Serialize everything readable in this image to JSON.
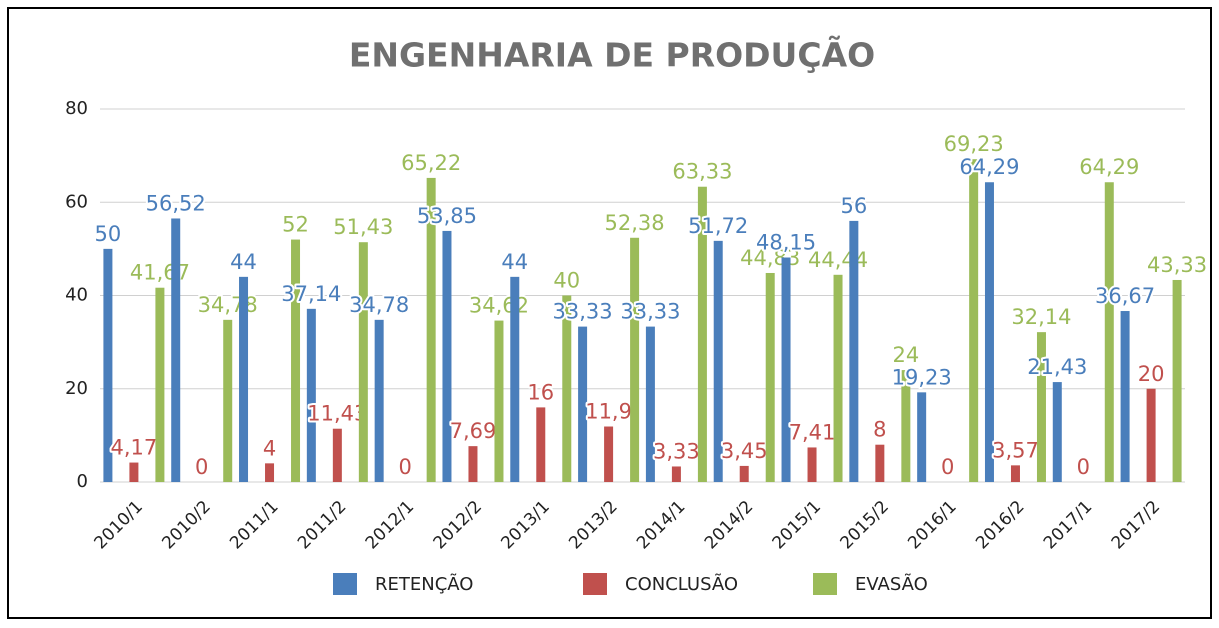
{
  "chart_data": {
    "type": "bar",
    "title": "ENGENHARIA DE PRODUÇÃO",
    "categories": [
      "2010/1",
      "2010/2",
      "2011/1",
      "2011/2",
      "2012/1",
      "2012/2",
      "2013/1",
      "2013/2",
      "2014/1",
      "2014/2",
      "2015/1",
      "2015/2",
      "2016/1",
      "2016/2",
      "2017/1",
      "2017/2"
    ],
    "series": [
      {
        "name": "RETENÇÃO",
        "color": "#4a7ebb",
        "values": [
          50,
          56.52,
          44,
          37.14,
          34.78,
          53.85,
          44,
          33.33,
          33.33,
          51.72,
          48.15,
          56,
          19.23,
          64.29,
          21.43,
          36.67
        ],
        "value_labels": [
          "50",
          "56,52",
          "44",
          "37,14",
          "34,78",
          "53,85",
          "44",
          "33,33",
          "33,33",
          "51,72",
          "48,15",
          "56",
          "19,23",
          "64,29",
          "21,43",
          "36,67"
        ]
      },
      {
        "name": "CONCLUSÃO",
        "color": "#c0504d",
        "values": [
          4.17,
          0,
          4,
          11.43,
          0,
          7.69,
          16,
          11.9,
          3.33,
          3.45,
          7.41,
          8,
          0,
          3.57,
          0,
          20
        ],
        "value_labels": [
          "4,17",
          "0",
          "4",
          "11,43",
          "0",
          "7,69",
          "16",
          "11,9",
          "3,33",
          "3,45",
          "7,41",
          "8",
          "0",
          "3,57",
          "0",
          "20"
        ]
      },
      {
        "name": "EVASÃO",
        "color": "#9bbb59",
        "values": [
          41.67,
          34.78,
          52,
          51.43,
          65.22,
          34.62,
          40,
          52.38,
          63.33,
          44.83,
          44.44,
          24,
          69.23,
          32.14,
          64.29,
          43.33
        ],
        "value_labels": [
          "41,67",
          "34,78",
          "52",
          "51,43",
          "65,22",
          "34,62",
          "40",
          "52,38",
          "63,33",
          "44,83",
          "44,44",
          "24",
          "69,23",
          "32,14",
          "64,29",
          "43,33"
        ]
      }
    ],
    "ylim": [
      0,
      80
    ],
    "yticks": [
      0,
      20,
      40,
      60,
      80
    ],
    "grid": true,
    "legend": "bottom"
  }
}
